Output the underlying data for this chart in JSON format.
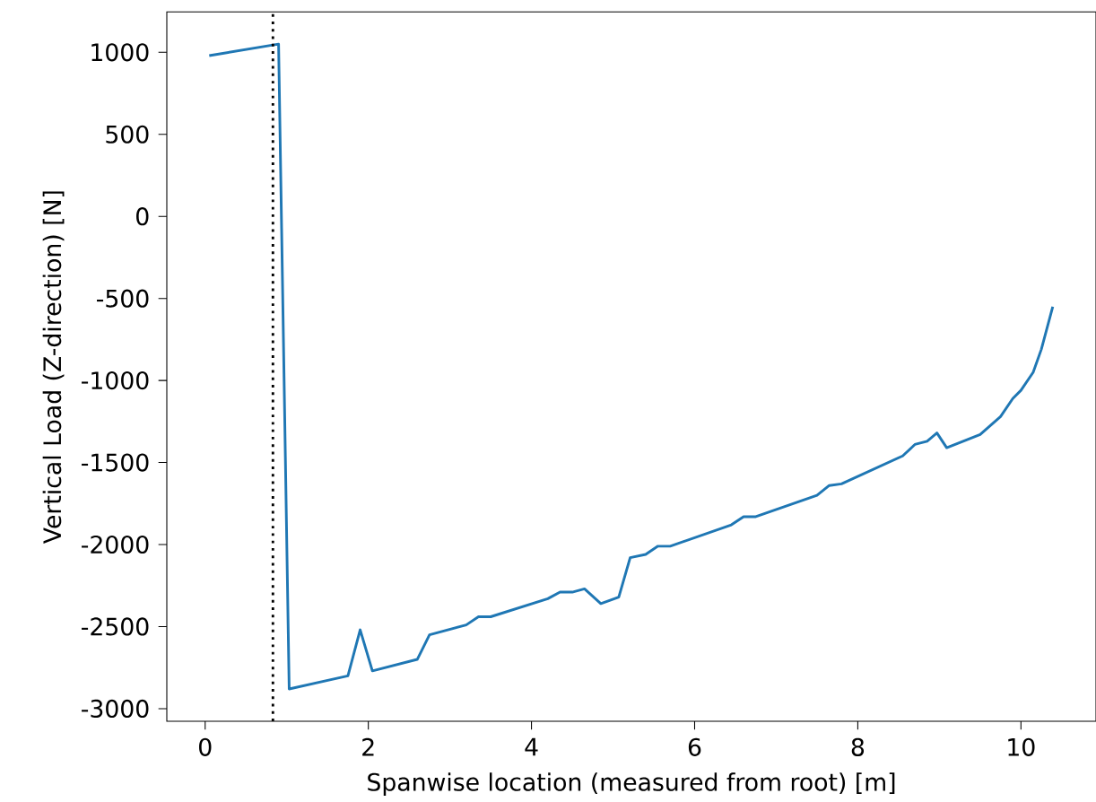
{
  "chart_data": {
    "type": "line",
    "xlabel": "Spanwise location (measured from root) [m]",
    "ylabel": "Vertical Load (Z-direction) [N]",
    "xlim": [
      -0.47,
      10.92
    ],
    "ylim": [
      -3077,
      1246
    ],
    "xticks": [
      0,
      2,
      4,
      6,
      8,
      10
    ],
    "yticks": [
      -3000,
      -2500,
      -2000,
      -1500,
      -1000,
      -500,
      0,
      500,
      1000
    ],
    "grid": false,
    "marker": "none",
    "line_style": "solid",
    "ref_lines": [
      {
        "axis": "x",
        "value": 0.83,
        "color": "#000000",
        "line_style": "dotted"
      }
    ],
    "series": [
      {
        "color": "#1f77b4",
        "x": [
          0.05,
          0.9,
          1.03,
          1.75,
          1.9,
          2.05,
          2.6,
          2.75,
          3.2,
          3.35,
          3.5,
          4.2,
          4.35,
          4.5,
          4.65,
          4.85,
          5.07,
          5.21,
          5.4,
          5.55,
          5.7,
          6.45,
          6.6,
          6.75,
          7.5,
          7.65,
          7.8,
          8.55,
          8.7,
          8.85,
          8.97,
          9.09,
          9.5,
          9.75,
          9.9,
          10.0,
          10.15,
          10.25,
          10.39
        ],
        "values": [
          980,
          1050,
          -2880,
          -2800,
          -2520,
          -2770,
          -2700,
          -2550,
          -2490,
          -2440,
          -2440,
          -2330,
          -2290,
          -2290,
          -2270,
          -2360,
          -2320,
          -2080,
          -2060,
          -2010,
          -2010,
          -1880,
          -1830,
          -1830,
          -1700,
          -1640,
          -1630,
          -1460,
          -1390,
          -1370,
          -1320,
          -1410,
          -1330,
          -1220,
          -1110,
          -1060,
          -950,
          -810,
          -550
        ]
      }
    ]
  }
}
